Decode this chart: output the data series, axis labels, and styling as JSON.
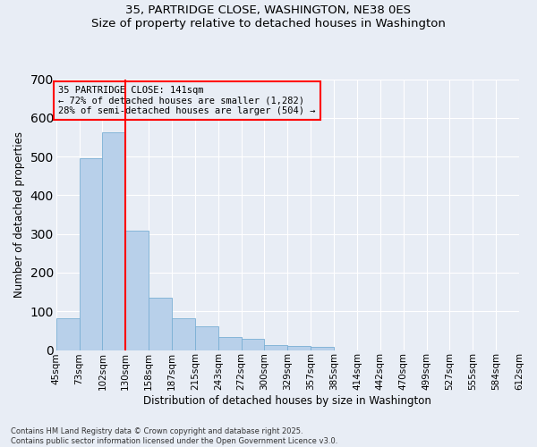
{
  "title_line1": "35, PARTRIDGE CLOSE, WASHINGTON, NE38 0ES",
  "title_line2": "Size of property relative to detached houses in Washington",
  "xlabel": "Distribution of detached houses by size in Washington",
  "ylabel": "Number of detached properties",
  "annotation_line1": "35 PARTRIDGE CLOSE: 141sqm",
  "annotation_line2": "← 72% of detached houses are smaller (1,282)",
  "annotation_line3": "28% of semi-detached houses are larger (504) →",
  "bins": [
    "45sqm",
    "73sqm",
    "102sqm",
    "130sqm",
    "158sqm",
    "187sqm",
    "215sqm",
    "243sqm",
    "272sqm",
    "300sqm",
    "329sqm",
    "357sqm",
    "385sqm",
    "414sqm",
    "442sqm",
    "470sqm",
    "499sqm",
    "527sqm",
    "555sqm",
    "584sqm",
    "612sqm"
  ],
  "values": [
    82,
    495,
    562,
    309,
    135,
    83,
    62,
    33,
    28,
    13,
    10,
    8,
    0,
    0,
    0,
    0,
    0,
    0,
    0,
    0
  ],
  "bar_color": "#b8d0ea",
  "bar_edge_color": "#7aafd4",
  "vline_color": "red",
  "ylim": [
    0,
    700
  ],
  "yticks": [
    0,
    100,
    200,
    300,
    400,
    500,
    600,
    700
  ],
  "background_color": "#e8edf5",
  "grid_color": "#ffffff",
  "title_fontsize": 9.5,
  "axis_fontsize": 8.5,
  "tick_fontsize": 7.5,
  "footnote1": "Contains HM Land Registry data © Crown copyright and database right 2025.",
  "footnote2": "Contains public sector information licensed under the Open Government Licence v3.0."
}
